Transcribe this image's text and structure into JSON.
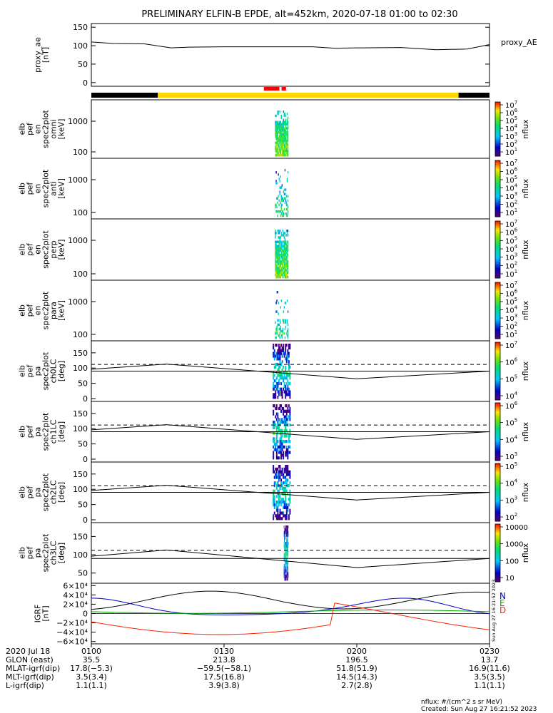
{
  "title": "PRELIMINARY ELFIN-B EPDE, alt=452km, 2020-07-18 01:00 to 02:30",
  "chart_data": [
    {
      "type": "line",
      "id": "proxy_ae",
      "ylabel": [
        "proxy_ae",
        "[nT]"
      ],
      "legend": "proxy_AE",
      "ylim": [
        -10,
        160
      ],
      "yticks": [
        "150",
        "100",
        "50",
        "0"
      ],
      "x_minutes": [
        0,
        5,
        12,
        18,
        22,
        30,
        40,
        50,
        55,
        60,
        70,
        78,
        85,
        90
      ],
      "y": [
        110,
        106,
        105,
        94,
        96,
        97,
        97,
        97,
        93,
        94,
        95,
        89,
        91,
        103
      ]
    },
    {
      "type": "heatmap",
      "id": "pef_en_spec2plot_omni",
      "ylabel": [
        "elb",
        "pef",
        "en",
        "spec2plot",
        "omni",
        "[keV]"
      ],
      "yticks": [
        "1000",
        "100"
      ],
      "colorbar_label": "nflux",
      "colorbar_ticks": [
        "10",
        "10",
        "10",
        "10",
        "10",
        "10",
        "10"
      ],
      "colorbar_exponents": [
        "7",
        "6",
        "5",
        "4",
        "3",
        "2",
        "1"
      ]
    },
    {
      "type": "heatmap",
      "id": "pef_en_spec2plot_anti",
      "ylabel": [
        "elb",
        "pef",
        "en",
        "spec2plot",
        "anti",
        "[keV]"
      ],
      "yticks": [
        "1000",
        "100"
      ],
      "colorbar_label": "nflux",
      "colorbar_ticks": [
        "10",
        "10",
        "10",
        "10",
        "10",
        "10",
        "10"
      ],
      "colorbar_exponents": [
        "7",
        "6",
        "5",
        "4",
        "3",
        "2",
        "1"
      ]
    },
    {
      "type": "heatmap",
      "id": "pef_en_spec2plot_perp",
      "ylabel": [
        "elb",
        "pef",
        "en",
        "spec2plot",
        "perp",
        "[keV]"
      ],
      "yticks": [
        "1000",
        "100"
      ],
      "colorbar_label": "nflux",
      "colorbar_ticks": [
        "10",
        "10",
        "10",
        "10",
        "10",
        "10",
        "10"
      ],
      "colorbar_exponents": [
        "7",
        "6",
        "5",
        "4",
        "3",
        "2",
        "1"
      ]
    },
    {
      "type": "heatmap",
      "id": "pef_en_spec2plot_para",
      "ylabel": [
        "elb",
        "pef",
        "en",
        "spec2plot",
        "para",
        "[keV]"
      ],
      "yticks": [
        "1000",
        "100"
      ],
      "colorbar_label": "nflux",
      "colorbar_ticks": [
        "10",
        "10",
        "10",
        "10",
        "10",
        "10",
        "10"
      ],
      "colorbar_exponents": [
        "7",
        "6",
        "5",
        "4",
        "3",
        "2",
        "1"
      ]
    },
    {
      "type": "heatmap",
      "id": "pef_pa_spec2plot_ch0LC",
      "ylabel": [
        "elb",
        "pef",
        "pa",
        "spec2plot",
        "ch0LC",
        "[deg]"
      ],
      "yticks": [
        "150",
        "100",
        "50",
        "0"
      ],
      "colorbar_label": "nflux",
      "colorbar_ticks": [
        "10",
        "10",
        "10",
        "10"
      ],
      "colorbar_exponents": [
        "7",
        "6",
        "5",
        "4"
      ],
      "lc_x_minutes": [
        0,
        17,
        60,
        90
      ],
      "lc_y": [
        96,
        113,
        65,
        90
      ],
      "dashed_y": 112,
      "solid_y": 90
    },
    {
      "type": "heatmap",
      "id": "pef_pa_spec2plot_ch1LC",
      "ylabel": [
        "elb",
        "pef",
        "pa",
        "spec2plot",
        "ch1LC",
        "[deg]"
      ],
      "yticks": [
        "150",
        "100",
        "50",
        "0"
      ],
      "colorbar_label": "nflux",
      "colorbar_ticks": [
        "10",
        "10",
        "10",
        "10"
      ],
      "colorbar_exponents": [
        "6",
        "5",
        "4",
        "3"
      ],
      "lc_x_minutes": [
        0,
        17,
        60,
        90
      ],
      "lc_y": [
        96,
        113,
        65,
        90
      ],
      "dashed_y": 112,
      "solid_y": 90
    },
    {
      "type": "heatmap",
      "id": "pef_pa_spec2plot_ch2LC",
      "ylabel": [
        "elb",
        "pef",
        "pa",
        "spec2plot",
        "ch2LC",
        "[deg]"
      ],
      "yticks": [
        "150",
        "100",
        "50",
        "0"
      ],
      "colorbar_label": "nflux",
      "colorbar_ticks": [
        "10",
        "10",
        "10",
        "10"
      ],
      "colorbar_exponents": [
        "5",
        "4",
        "3",
        "2"
      ],
      "lc_x_minutes": [
        0,
        17,
        60,
        90
      ],
      "lc_y": [
        96,
        113,
        65,
        90
      ],
      "dashed_y": 112,
      "solid_y": 90
    },
    {
      "type": "heatmap",
      "id": "pef_pa_spec2plot_ch3LC",
      "ylabel": [
        "elb",
        "pef",
        "pa",
        "spec2plot",
        "ch3LC",
        "[deg]"
      ],
      "yticks": [
        "150",
        "100",
        "50"
      ],
      "colorbar_label": "nflux",
      "colorbar_ticks": [
        "10000",
        "1000",
        "100",
        "10"
      ],
      "lc_x_minutes": [
        0,
        17,
        60,
        90
      ],
      "lc_y": [
        96,
        113,
        65,
        90
      ],
      "dashed_y": 112,
      "solid_y": 90
    },
    {
      "type": "line",
      "id": "igrf",
      "ylabel": [
        "IGRF",
        "[nT]"
      ],
      "ylim": [
        -65000,
        65000
      ],
      "yticks": [
        "6×10⁴",
        "4×10⁴",
        "2×10⁴",
        "0",
        "−2×10⁴",
        "−4×10⁴",
        "−6×10⁴"
      ],
      "series": [
        {
          "name": "N",
          "color": "#0000cc"
        },
        {
          "name": "E",
          "color": "#00aa00"
        },
        {
          "name": "D",
          "color": "#ff2200"
        }
      ],
      "timestamp": "Sun Aug 27 16:21:52 2023"
    }
  ],
  "orbit_bar": {
    "black_until_minutes": 15,
    "yellow_until_minutes": 83,
    "red_minutes": [
      [
        39,
        42.5
      ],
      [
        43,
        44
      ]
    ]
  },
  "annotations": {
    "row_labels": [
      "2020 Jul 18",
      "GLON (east)",
      "MLAT-igrf(dip)",
      "MLT-igrf(dip)",
      "L-igrf(dip)"
    ],
    "columns": [
      {
        "time": "0100",
        "glon": "35.5",
        "mlat": "17.8(−5.3)",
        "mlt": "3.5(3.4)",
        "l": "1.1(1.1)"
      },
      {
        "time": "0130",
        "glon": "213.8",
        "mlat": "−59.5(−58.1)",
        "mlt": "17.5(16.8)",
        "l": "3.9(3.8)"
      },
      {
        "time": "0200",
        "glon": "196.5",
        "mlat": "51.8(51.9)",
        "mlt": "14.5(14.3)",
        "l": "2.7(2.8)"
      },
      {
        "time": "0230",
        "glon": "13.7",
        "mlat": "16.9(11.6)",
        "mlt": "3.5(3.5)",
        "l": "1.1(1.1)"
      }
    ],
    "units_note": "nflux: #/(cm^2 s sr MeV)",
    "created": "Created: Sun Aug 27 16:21:52 2023"
  }
}
